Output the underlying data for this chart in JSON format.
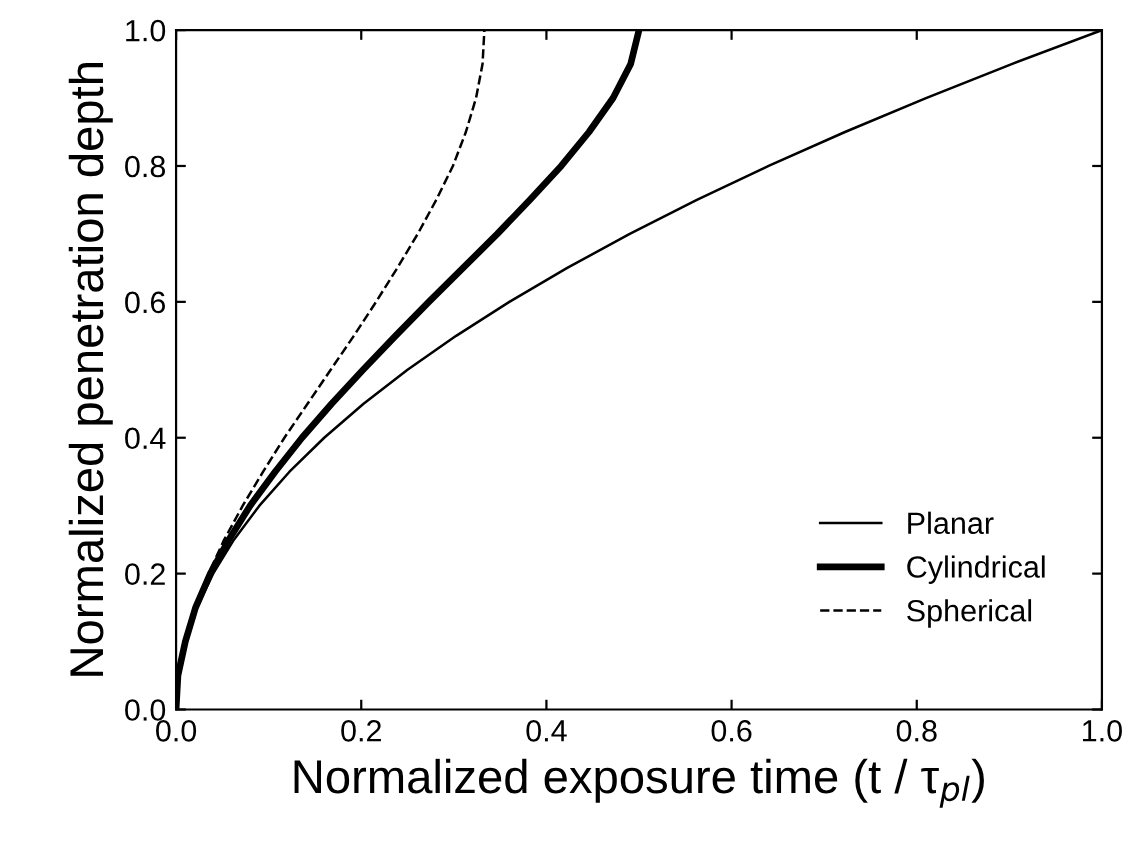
{
  "chart_data": {
    "type": "line",
    "xlabel": "Normalized exposure time (t / τ$_{pl}$)",
    "ylabel": "Normalized penetration depth",
    "xlim": [
      0,
      1
    ],
    "ylim": [
      0,
      1
    ],
    "xticks": [
      {
        "value": 0,
        "label": "0.0"
      },
      {
        "value": 0.2,
        "label": "0.2"
      },
      {
        "value": 0.4,
        "label": "0.4"
      },
      {
        "value": 0.6,
        "label": "0.6"
      },
      {
        "value": 0.8,
        "label": "0.8"
      },
      {
        "value": 1,
        "label": "1.0"
      }
    ],
    "yticks": [
      {
        "value": 0,
        "label": "0.0"
      },
      {
        "value": 0.2,
        "label": "0.2"
      },
      {
        "value": 0.4,
        "label": "0.4"
      },
      {
        "value": 0.6,
        "label": "0.6"
      },
      {
        "value": 0.8,
        "label": "0.8"
      },
      {
        "value": 1,
        "label": "1.0"
      }
    ],
    "grid": false,
    "legend": "bottom right",
    "marker": "none",
    "series": [
      {
        "name": "Planar",
        "color": "#000000",
        "line_style": "solid",
        "x": [
          0,
          0.0025,
          0.01,
          0.0225,
          0.04,
          0.0625,
          0.09,
          0.1225,
          0.16,
          0.2025,
          0.25,
          0.3025,
          0.36,
          0.4225,
          0.49,
          0.5625,
          0.64,
          0.7225,
          0.81,
          0.9025,
          1
        ],
        "values": [
          0,
          0.05,
          0.1,
          0.15,
          0.2,
          0.25,
          0.3,
          0.35,
          0.4,
          0.45,
          0.5,
          0.55,
          0.6,
          0.65,
          0.7,
          0.75,
          0.8,
          0.85,
          0.9,
          0.95,
          1
        ]
      },
      {
        "name": "Cylindrical",
        "color": "#000000",
        "line_style": "solid",
        "x": [
          0,
          0.002,
          0.01,
          0.021,
          0.037,
          0.057,
          0.08,
          0.107,
          0.136,
          0.168,
          0.202,
          0.237,
          0.273,
          0.31,
          0.347,
          0.382,
          0.416,
          0.446,
          0.472,
          0.491,
          0.5
        ],
        "values": [
          0,
          0.05,
          0.1,
          0.15,
          0.2,
          0.25,
          0.3,
          0.35,
          0.4,
          0.45,
          0.5,
          0.55,
          0.6,
          0.65,
          0.7,
          0.75,
          0.8,
          0.85,
          0.9,
          0.95,
          1
        ]
      },
      {
        "name": "Spherical",
        "color": "#000000",
        "line_style": "dashed",
        "x": [
          0,
          0.002,
          0.009,
          0.02,
          0.035,
          0.052,
          0.072,
          0.094,
          0.117,
          0.142,
          0.167,
          0.192,
          0.216,
          0.239,
          0.261,
          0.281,
          0.299,
          0.313,
          0.324,
          0.331,
          0.333
        ],
        "values": [
          0,
          0.05,
          0.1,
          0.15,
          0.2,
          0.25,
          0.3,
          0.35,
          0.4,
          0.45,
          0.5,
          0.55,
          0.6,
          0.65,
          0.7,
          0.75,
          0.8,
          0.85,
          0.9,
          0.95,
          1
        ]
      }
    ]
  }
}
